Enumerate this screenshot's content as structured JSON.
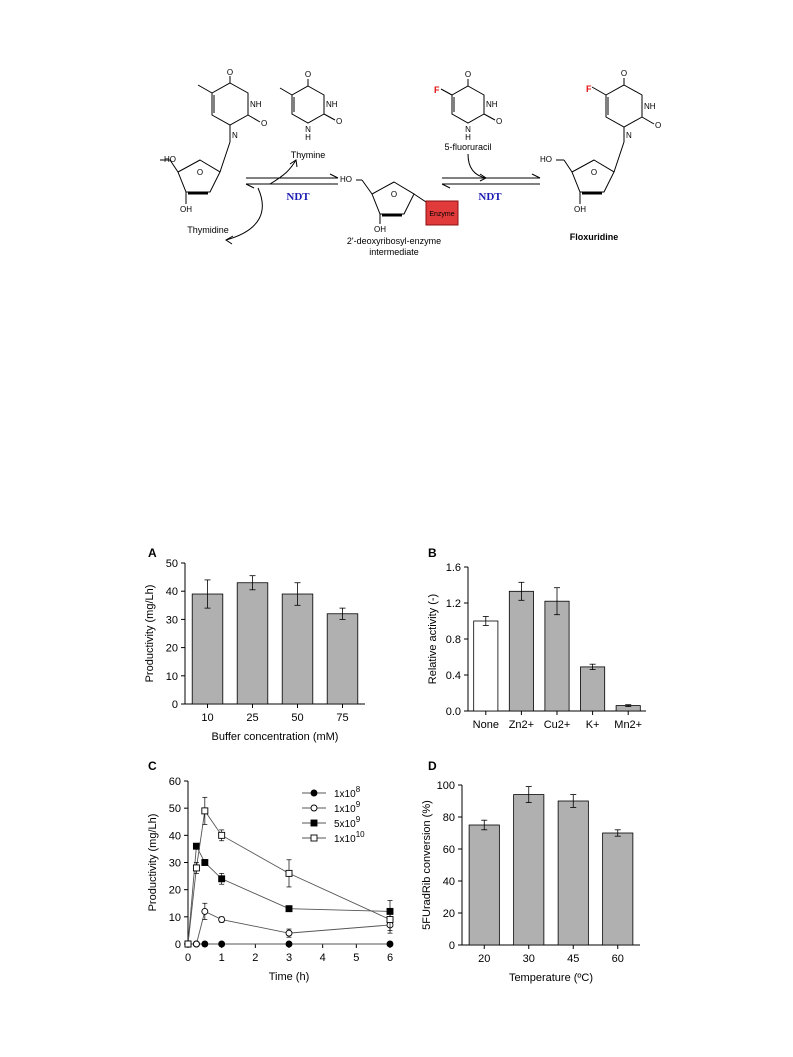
{
  "scheme": {
    "thymidine_label": "Thymidine",
    "thymine_label": "Thymine",
    "fluorouracil_label": "5-fluoruracil",
    "intermediate_label_line1": "2'-deoxyribosyl-enzyme",
    "intermediate_label_line2": "intermediate",
    "enzyme_box_label": "Enzyme",
    "floxuridine_label": "Floxuridine",
    "ndt_left": "NDT",
    "ndt_right": "NDT",
    "atom_O": "O",
    "atom_NH": "NH",
    "atom_N": "N",
    "atom_H": "H",
    "atom_F": "F",
    "atom_HO": "HO",
    "atom_OH": "OH",
    "colors": {
      "ndt": "#1a1ab4",
      "fluorine": "#e01010",
      "enzyme_box": "#e03a3a"
    }
  },
  "chart_data": [
    {
      "panel": "A",
      "type": "bar",
      "categories": [
        "10",
        "25",
        "50",
        "75"
      ],
      "values": [
        39,
        43,
        39,
        32
      ],
      "errors": [
        5,
        2.5,
        4,
        2
      ],
      "xlabel": "Buffer concentration (mM)",
      "ylabel": "Productivity (mg/Lh)",
      "ylim": [
        0,
        50
      ],
      "yticks": [
        "0",
        "10",
        "20",
        "30",
        "40",
        "50"
      ],
      "bar_colors": [
        "#b0b0b0",
        "#b0b0b0",
        "#b0b0b0",
        "#b0b0b0"
      ]
    },
    {
      "panel": "B",
      "type": "bar",
      "categories": [
        "None",
        "Zn2+",
        "Cu2+",
        "K+",
        "Mn2+"
      ],
      "values": [
        1.0,
        1.33,
        1.22,
        0.49,
        0.06
      ],
      "errors": [
        0.05,
        0.1,
        0.15,
        0.03,
        0.01
      ],
      "xlabel": "",
      "ylabel": "Relative activity (-)",
      "ylim": [
        0,
        1.6
      ],
      "yticks": [
        "0.0",
        "0.4",
        "0.8",
        "1.2",
        "1.6"
      ],
      "bar_colors": [
        "#ffffff",
        "#b0b0b0",
        "#b0b0b0",
        "#b0b0b0",
        "#b0b0b0"
      ]
    },
    {
      "panel": "C",
      "type": "line",
      "xlabel": "Time (h)",
      "ylabel": "Productivity (mg/Lh)",
      "xlim": [
        0,
        6
      ],
      "ylim": [
        0,
        60
      ],
      "xticks": [
        "0",
        "1",
        "2",
        "3",
        "4",
        "5",
        "6"
      ],
      "yticks": [
        "0",
        "10",
        "20",
        "30",
        "40",
        "50",
        "60"
      ],
      "legend_position": "top-right",
      "series": [
        {
          "name_base": "1x10",
          "name_exp": "8",
          "marker": "circle-filled",
          "x": [
            0,
            0.25,
            0.5,
            1,
            3,
            6
          ],
          "y": [
            0,
            0,
            0,
            0,
            0,
            0
          ],
          "err": [
            0,
            0,
            0,
            0,
            0,
            0
          ]
        },
        {
          "name_base": "1x10",
          "name_exp": "9",
          "marker": "circle-open",
          "x": [
            0,
            0.25,
            0.5,
            1,
            3,
            6
          ],
          "y": [
            0,
            0,
            12,
            9,
            4,
            7
          ],
          "err": [
            0,
            0,
            3,
            1,
            1.5,
            3
          ]
        },
        {
          "name_base": "5x10",
          "name_exp": "9",
          "marker": "square-filled",
          "x": [
            0,
            0.25,
            0.5,
            1,
            3,
            6
          ],
          "y": [
            0,
            36,
            30,
            24,
            13,
            12
          ],
          "err": [
            0,
            0,
            1,
            2,
            1,
            4
          ]
        },
        {
          "name_base": "1x10",
          "name_exp": "10",
          "marker": "square-open",
          "x": [
            0,
            0.25,
            0.5,
            1,
            3,
            6
          ],
          "y": [
            0,
            28,
            49,
            40,
            26,
            9
          ],
          "err": [
            0,
            2,
            5,
            2,
            5,
            4
          ]
        }
      ]
    },
    {
      "panel": "D",
      "type": "bar",
      "categories": [
        "20",
        "30",
        "45",
        "60"
      ],
      "values": [
        75,
        94,
        90,
        70
      ],
      "errors": [
        3,
        5,
        4,
        2
      ],
      "xlabel": "Temperature (ºC)",
      "ylabel": "5FUradRib conversion (%)",
      "ylim": [
        0,
        100
      ],
      "yticks": [
        "0",
        "20",
        "40",
        "60",
        "80",
        "100"
      ],
      "bar_colors": [
        "#b0b0b0",
        "#b0b0b0",
        "#b0b0b0",
        "#b0b0b0"
      ]
    }
  ]
}
